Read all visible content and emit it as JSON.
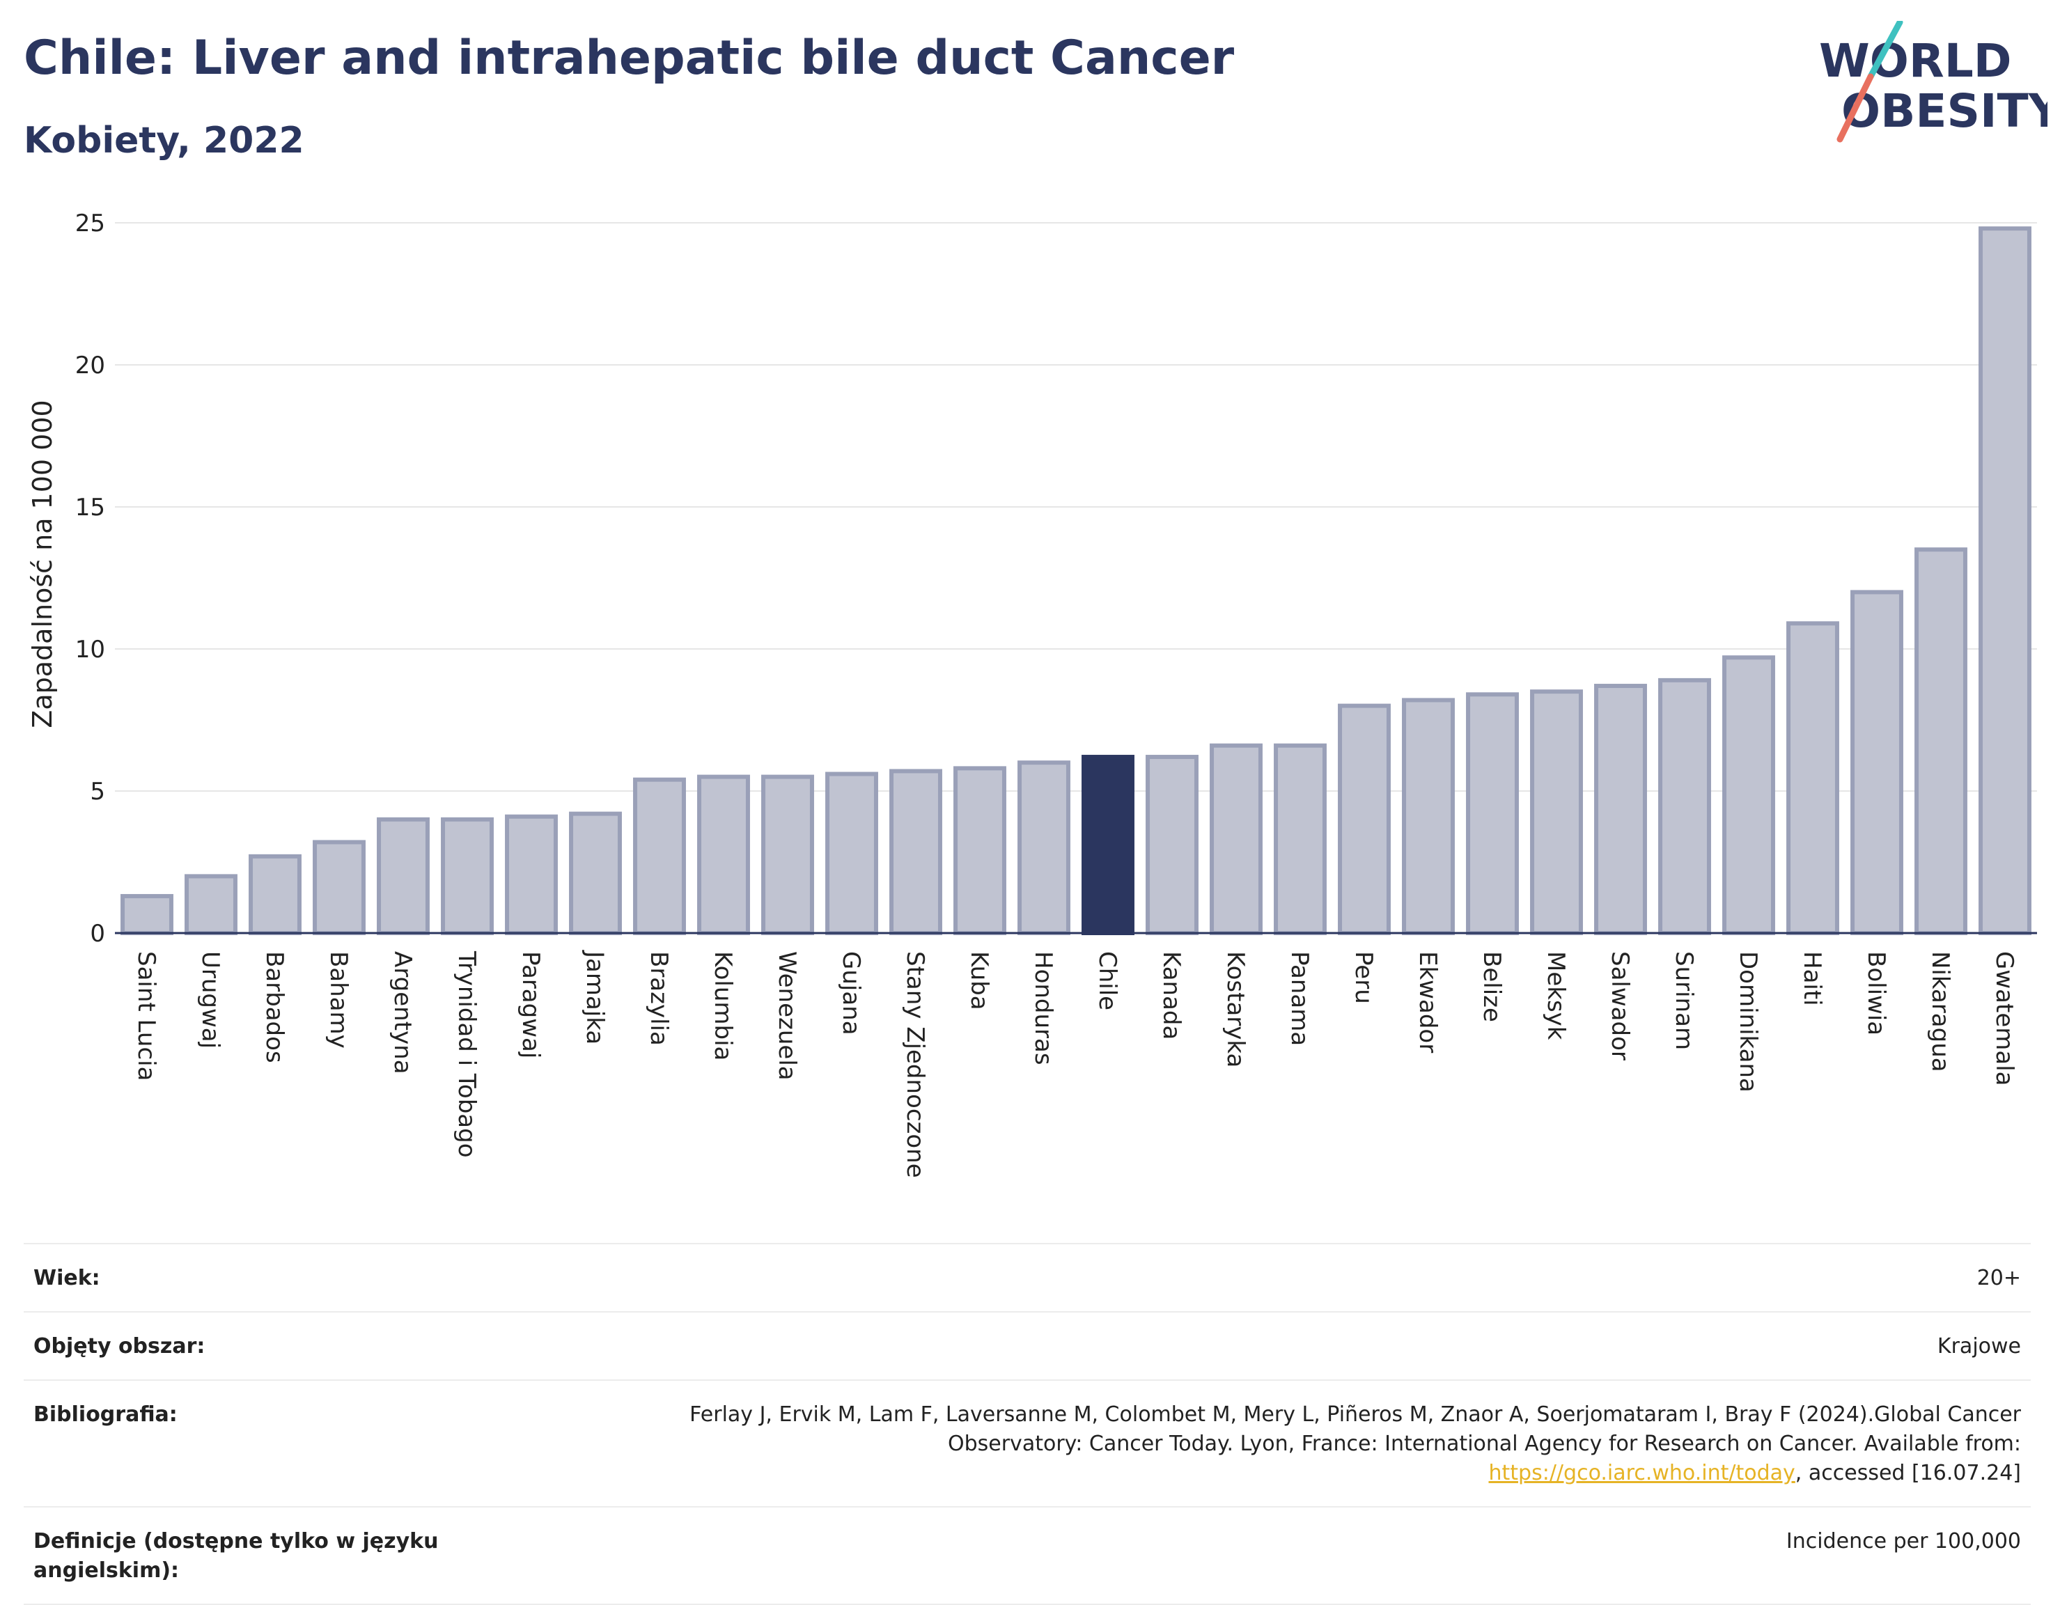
{
  "header": {
    "title": "Chile: Liver and intrahepatic bile duct Cancer",
    "subtitle": "Kobiety, 2022"
  },
  "logo": {
    "line1": "WORLD",
    "line2": "OBESITY"
  },
  "colors": {
    "bar": "#c0c3d1",
    "bar_border": "#9aa0b8",
    "highlight": "#2b365f",
    "grid": "#e6e6e6",
    "axis": "#2b365f"
  },
  "chart_data": {
    "type": "bar",
    "title": "Chile: Liver and intrahepatic bile duct Cancer",
    "subtitle": "Kobiety, 2022",
    "xlabel": "",
    "ylabel": "Zapadalność na 100 000",
    "ylim": [
      0,
      25
    ],
    "yticks": [
      0,
      5,
      10,
      15,
      20,
      25
    ],
    "grid": true,
    "highlight": "Chile",
    "categories": [
      "Saint Lucia",
      "Urugwaj",
      "Barbados",
      "Bahamy",
      "Argentyna",
      "Trynidad i Tobago",
      "Paragwaj",
      "Jamajka",
      "Brazylia",
      "Kolumbia",
      "Wenezuela",
      "Gujana",
      "Stany Zjednoczone",
      "Kuba",
      "Honduras",
      "Chile",
      "Kanada",
      "Kostaryka",
      "Panama",
      "Peru",
      "Ekwador",
      "Belize",
      "Meksyk",
      "Salwador",
      "Surinam",
      "Dominikana",
      "Haiti",
      "Boliwia",
      "Nikaragua",
      "Gwatemala"
    ],
    "values": [
      1.3,
      2.0,
      2.7,
      3.2,
      4.0,
      4.0,
      4.1,
      4.2,
      5.4,
      5.5,
      5.5,
      5.6,
      5.7,
      5.8,
      6.0,
      6.2,
      6.2,
      6.6,
      6.6,
      8.0,
      8.2,
      8.4,
      8.5,
      8.7,
      8.9,
      9.7,
      10.9,
      12.0,
      13.5,
      24.8
    ]
  },
  "meta": {
    "rows": [
      {
        "key": "Wiek:",
        "value": "20+"
      },
      {
        "key": "Objęty obszar:",
        "value": "Krajowe"
      },
      {
        "key": "Bibliografia:",
        "value_pre": "Ferlay J, Ervik M, Lam F, Laversanne M, Colombet M, Mery L, Piñeros M, Znaor A, Soerjomataram I, Bray F (2024).Global Cancer Observatory: Cancer Today. Lyon, France: International Agency for Research on Cancer. Available from: ",
        "link": "https://gco.iarc.who.int/today",
        "value_post": ", accessed [16.07.24]"
      },
      {
        "key": "Definicje (dostępne tylko w języku angielskim):",
        "value": "Incidence per 100,000"
      }
    ]
  }
}
